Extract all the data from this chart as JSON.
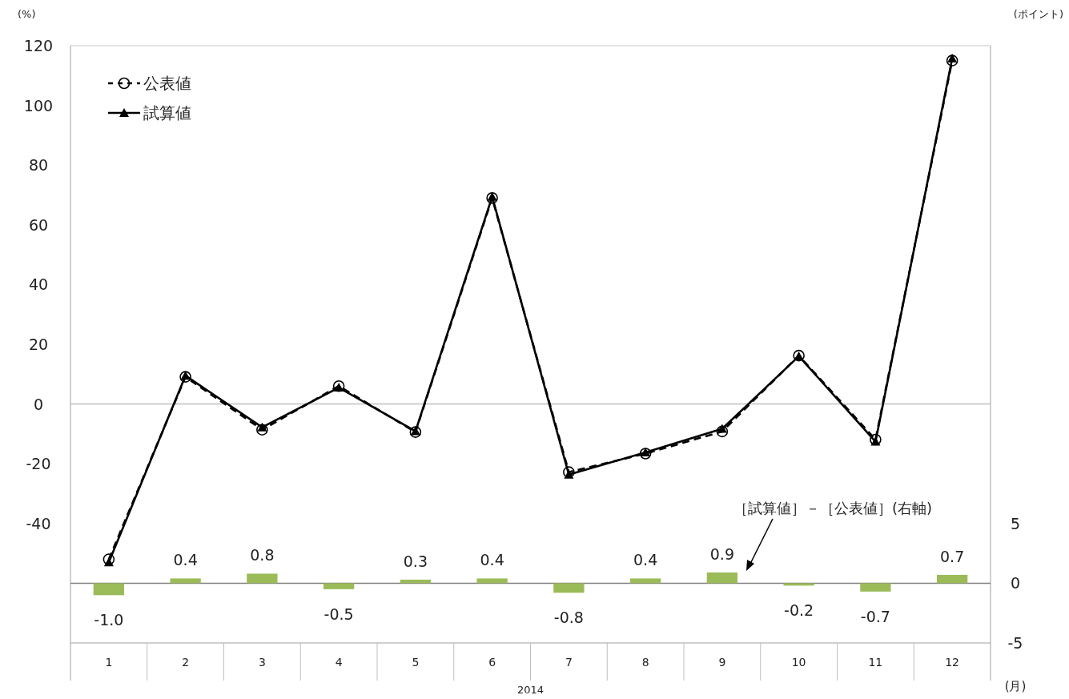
{
  "chart_data": {
    "type": "line",
    "categories": [
      "1",
      "2",
      "3",
      "4",
      "5",
      "6",
      "7",
      "8",
      "9",
      "10",
      "11",
      "12"
    ],
    "xlabel": "2014",
    "ylabel": "(%)",
    "y2label": "(ポイント)",
    "ylim": [
      -80,
      120
    ],
    "yticks": [
      -40,
      -20,
      0,
      20,
      40,
      60,
      80,
      100,
      120
    ],
    "y2lim": [
      -5,
      45
    ],
    "y2ticks": [
      -5,
      0,
      5
    ],
    "legend": "top left",
    "ref_lines": [
      {
        "axis": "y",
        "value": 0,
        "color": "#bfbfbf"
      },
      {
        "axis": "y2",
        "value": 0,
        "color": "#808080"
      }
    ],
    "annotations": [
      "(月)",
      "［試算値］－［公表値］(右軸)"
    ],
    "series": [
      {
        "name": "公表値",
        "color": "#000000",
        "marker": "circle",
        "line_style": "dashed",
        "values": [
          -52.0,
          9.1,
          -8.6,
          6.0,
          -9.4,
          69.0,
          -22.8,
          -16.6,
          -9.2,
          16.2,
          -11.9,
          115.0
        ]
      },
      {
        "name": "試算値",
        "color": "#000000",
        "marker": "triangle",
        "line_style": "solid",
        "values": [
          -53.0,
          9.5,
          -7.8,
          5.5,
          -9.1,
          69.4,
          -23.6,
          -16.2,
          -8.3,
          16.0,
          -12.6,
          115.7
        ]
      },
      {
        "type": "bar",
        "axis": "y2",
        "color": "#9bbb59",
        "values": [
          -1.0,
          0.4,
          0.8,
          -0.5,
          0.3,
          0.4,
          -0.8,
          0.4,
          0.9,
          -0.2,
          -0.7,
          0.7
        ],
        "value_labels": [
          "-1.0",
          "0.4",
          "0.8",
          "-0.5",
          "0.3",
          "0.4",
          "-0.8",
          "0.4",
          "0.9",
          "-0.2",
          "-0.7",
          "0.7"
        ]
      }
    ]
  }
}
